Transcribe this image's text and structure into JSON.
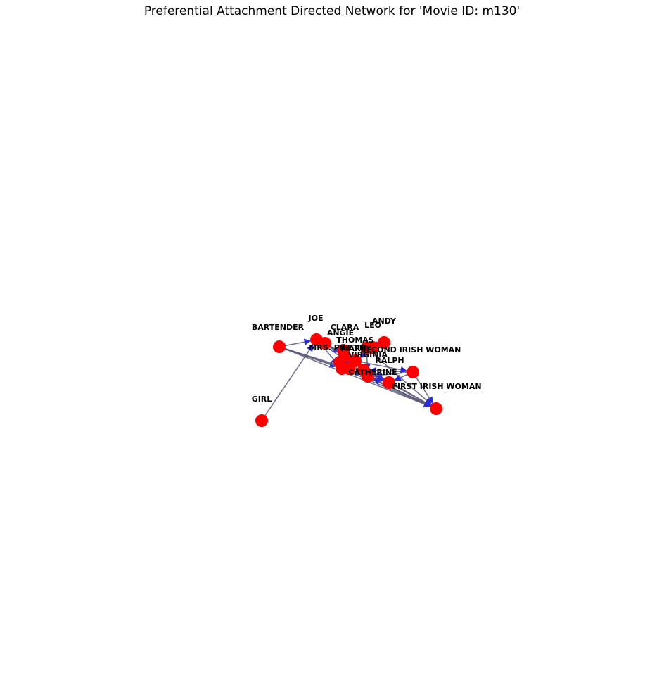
{
  "title": "Preferential Attachment Directed Network for 'Movie ID: m130'",
  "colors": {
    "node": "#ff0000",
    "edge": "#5a5a78",
    "arrow": "#2b2bd6",
    "label": "#000000"
  },
  "nodes": [
    {
      "id": "BARTENDER",
      "label": "BARTENDER"
    },
    {
      "id": "GIRL",
      "label": "GIRL"
    },
    {
      "id": "JOE",
      "label": "JOE"
    },
    {
      "id": "ANGIE",
      "label": "ANGIE"
    },
    {
      "id": "CLARA",
      "label": "CLARA"
    },
    {
      "id": "LEO",
      "label": "LEO"
    },
    {
      "id": "ANDY",
      "label": "ANDY"
    },
    {
      "id": "THOMAS",
      "label": "THOMAS"
    },
    {
      "id": "MRS",
      "label": "MRS. PILETTI"
    },
    {
      "id": "MARTY",
      "label": "MARTY"
    },
    {
      "id": "SECOND_IRISH",
      "label": "SECOND IRISH WOMAN"
    },
    {
      "id": "RALPH",
      "label": "RALPH"
    },
    {
      "id": "VIRGINIA",
      "label": "VIRGINIA"
    },
    {
      "id": "CATHERINE",
      "label": "CATHERINE"
    },
    {
      "id": "FIRST_IRISH",
      "label": "FIRST IRISH WOMAN"
    },
    {
      "id": "N16",
      "label": ""
    },
    {
      "id": "N17",
      "label": ""
    },
    {
      "id": "N18",
      "label": ""
    }
  ],
  "edges": [
    [
      "BARTENDER",
      "N16"
    ],
    [
      "BARTENDER",
      "N17"
    ],
    [
      "BARTENDER",
      "CATHERINE"
    ],
    [
      "BARTENDER",
      "JOE"
    ],
    [
      "GIRL",
      "JOE"
    ],
    [
      "JOE",
      "MARTY"
    ],
    [
      "JOE",
      "ANGIE"
    ],
    [
      "JOE",
      "N16"
    ],
    [
      "JOE",
      "CATHERINE"
    ],
    [
      "ANGIE",
      "MARTY"
    ],
    [
      "ANGIE",
      "THOMAS"
    ],
    [
      "THOMAS",
      "MARTY"
    ],
    [
      "THOMAS",
      "N16"
    ],
    [
      "LEO",
      "MARTY"
    ],
    [
      "LEO",
      "ANDY"
    ],
    [
      "ANDY",
      "MARTY"
    ],
    [
      "ANDY",
      "SECOND_IRISH"
    ],
    [
      "CLARA",
      "MARTY"
    ],
    [
      "CLARA",
      "VIRGINIA"
    ],
    [
      "MRS",
      "MARTY"
    ],
    [
      "MRS",
      "N16"
    ],
    [
      "MRS",
      "N17"
    ],
    [
      "VIRGINIA",
      "THOMAS"
    ],
    [
      "VIRGINIA",
      "CATHERINE"
    ],
    [
      "VIRGINIA",
      "N17"
    ],
    [
      "CATHERINE",
      "FIRST_IRISH"
    ],
    [
      "CATHERINE",
      "N18"
    ],
    [
      "CATHERINE",
      "MARTY"
    ],
    [
      "RALPH",
      "CATHERINE"
    ],
    [
      "RALPH",
      "N18"
    ],
    [
      "RALPH",
      "FIRST_IRISH"
    ],
    [
      "RALPH",
      "VIRGINIA"
    ],
    [
      "SECOND_IRISH",
      "N18"
    ],
    [
      "SECOND_IRISH",
      "CATHERINE"
    ],
    [
      "N16",
      "N18"
    ],
    [
      "N16",
      "FIRST_IRISH"
    ],
    [
      "N17",
      "N18"
    ],
    [
      "N17",
      "CATHERINE"
    ],
    [
      "FIRST_IRISH",
      "N18"
    ],
    [
      "N18",
      "CATHERINE"
    ],
    [
      "MARTY",
      "N16"
    ],
    [
      "MARTY",
      "RALPH"
    ],
    [
      "BARTENDER",
      "N18"
    ],
    [
      "JOE",
      "N18"
    ],
    [
      "THOMAS",
      "FIRST_IRISH"
    ],
    [
      "MRS",
      "FIRST_IRISH"
    ]
  ]
}
